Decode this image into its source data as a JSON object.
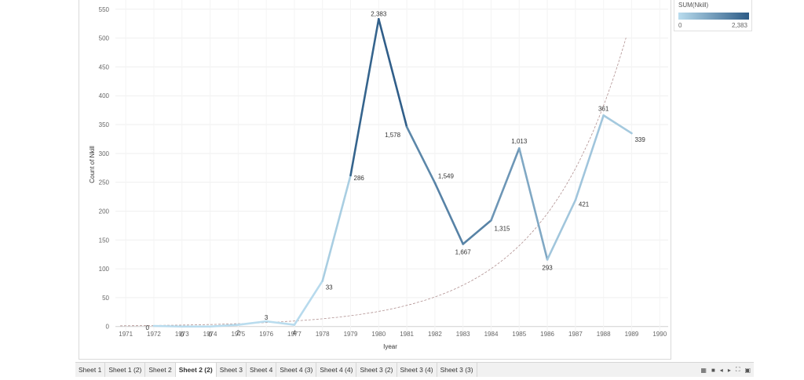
{
  "legend": {
    "title": "SUM(Nkill)",
    "min_label": "0",
    "max_label": "2,383",
    "color_low": "#b9dcee",
    "color_high": "#2c5b86"
  },
  "tabs": [
    {
      "label": "Sheet 1",
      "active": false
    },
    {
      "label": "Sheet 1 (2)",
      "active": false
    },
    {
      "label": "Sheet 2",
      "active": false
    },
    {
      "label": "Sheet 2 (2)",
      "active": true
    },
    {
      "label": "Sheet 3",
      "active": false
    },
    {
      "label": "Sheet 4",
      "active": false
    },
    {
      "label": "Sheet 4 (3)",
      "active": false
    },
    {
      "label": "Sheet 4 (4)",
      "active": false
    },
    {
      "label": "Sheet 3 (2)",
      "active": false
    },
    {
      "label": "Sheet 3 (4)",
      "active": false
    },
    {
      "label": "Sheet 3 (3)",
      "active": false
    }
  ],
  "tab_controls": [
    "grid-view-icon",
    "single-view-icon",
    "prev-icon",
    "next-icon",
    "fullscreen-icon",
    "present-icon"
  ],
  "chart_data": {
    "type": "line",
    "xlabel": "Iyear",
    "ylabel": "Count of Nkill",
    "x_ticks": [
      1971,
      1972,
      1973,
      1974,
      1975,
      1976,
      1977,
      1978,
      1979,
      1980,
      1981,
      1982,
      1983,
      1984,
      1985,
      1986,
      1987,
      1988,
      1989,
      1990
    ],
    "y_ticks": [
      0,
      50,
      100,
      150,
      200,
      250,
      300,
      350,
      400,
      450,
      500,
      550
    ],
    "xlim": [
      1970.8,
      1990.3
    ],
    "ylim": [
      -18,
      566
    ],
    "grid": true,
    "color_encoding": "SUM(Nkill)",
    "series": [
      {
        "x": [
          1972,
          1973,
          1974,
          1975,
          1976,
          1977,
          1978,
          1979,
          1980,
          1981,
          1982,
          1983,
          1984,
          1985,
          1986,
          1987,
          1988,
          1989
        ],
        "y": [
          1,
          0,
          0,
          3,
          9,
          3,
          79,
          262,
          533,
          346,
          249,
          143,
          184,
          309,
          116,
          219,
          366,
          335
        ],
        "labels": [
          "0",
          "0",
          "0",
          "2",
          "3",
          "4",
          "33",
          "286",
          "2,383",
          "1,578",
          "1,549",
          "1,667",
          "1,315",
          "1,013",
          "293",
          "421",
          "361",
          "339"
        ],
        "sum_nkill": [
          0,
          0,
          0,
          2,
          3,
          4,
          33,
          286,
          2383,
          1578,
          1549,
          1667,
          1315,
          1013,
          293,
          421,
          361,
          339
        ]
      }
    ],
    "trend_line": {
      "type": "exponential",
      "color": "#b09090"
    }
  }
}
